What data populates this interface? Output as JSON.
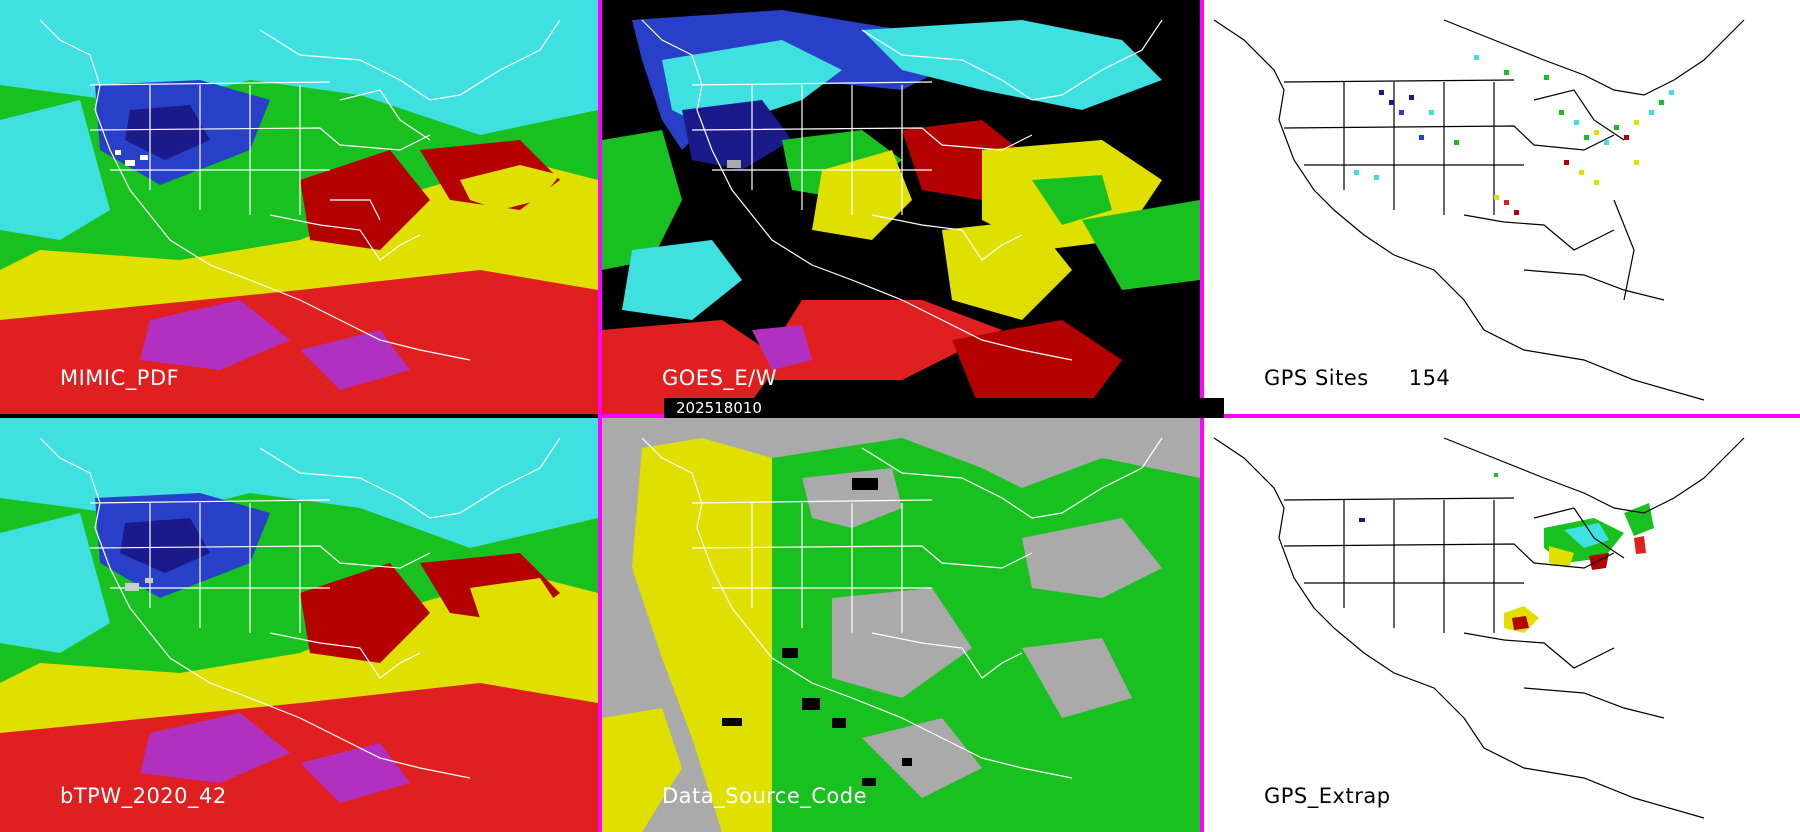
{
  "colors": {
    "divider": "#ff00ff",
    "tpw_scale": [
      "#5a3c9c",
      "#1a1a8a",
      "#2840c8",
      "#3fe0e0",
      "#18c020",
      "#e0e000",
      "#b40000",
      "#e02020",
      "#b030c0"
    ],
    "missing": "#000000",
    "source_code": {
      "gray": "#aaaaaa",
      "yellow": "#e0e000",
      "green": "#18c020",
      "black": "#000000"
    },
    "gps_background": "#ffffff",
    "outline_on_dark": "#ffffff",
    "outline_on_light": "#000000"
  },
  "icons": {
    "map_overlay": "coastline-and-state-borders"
  },
  "panels": {
    "mimic_pdf": {
      "label": "MIMIC_PDF"
    },
    "goes": {
      "label": "GOES_E/W",
      "timestamp": "202518010"
    },
    "gps_sites": {
      "label": "GPS Sites",
      "count": "154"
    },
    "btpw": {
      "label": "bTPW_2020_42"
    },
    "data_source": {
      "label": "Data_Source_Code"
    },
    "gps_extrap": {
      "label": "GPS_Extrap"
    }
  }
}
